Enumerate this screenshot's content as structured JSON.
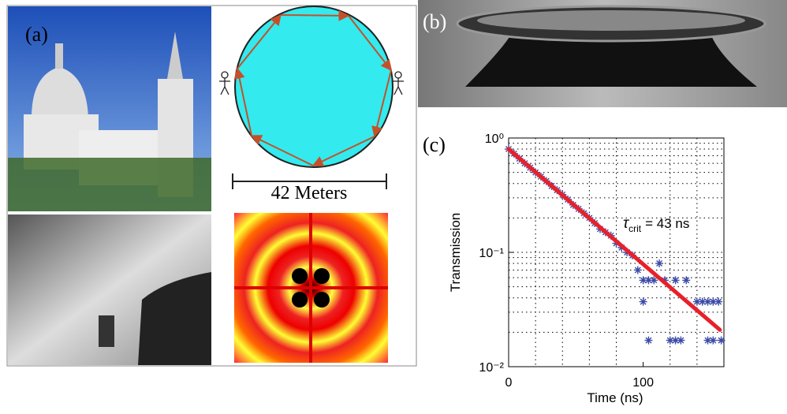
{
  "panels": {
    "a": {
      "label": "(a)",
      "scale_label": "42 Meters"
    },
    "b": {
      "label": "(b)"
    },
    "c": {
      "label": "(c)"
    }
  },
  "chart_data": {
    "type": "scatter",
    "xlabel": "Time (ns)",
    "ylabel": "Transmission",
    "yscale": "log",
    "grid": true,
    "xlim": [
      0,
      160
    ],
    "xticks": [
      0,
      100
    ],
    "xminor": [
      20,
      40,
      60,
      80,
      120,
      140
    ],
    "ylim": [
      0.01,
      1
    ],
    "yticks": [
      {
        "value": 1,
        "label": "10⁰"
      },
      {
        "value": 0.1,
        "label": "10⁻¹"
      },
      {
        "value": 0.01,
        "label": "10⁻²"
      }
    ],
    "yminor": [
      0.02,
      0.03,
      0.04,
      0.05,
      0.06,
      0.07,
      0.08,
      0.09,
      0.2,
      0.3,
      0.4,
      0.5,
      0.6,
      0.7,
      0.8,
      0.9
    ],
    "annotation": {
      "symbol": "τ",
      "subscript": "crit",
      "text": "= 43 ns"
    },
    "points": {
      "color": "#3a4aa6",
      "x": [
        0,
        4,
        8,
        12,
        16,
        20,
        24,
        28,
        32,
        36,
        40,
        44,
        48,
        52,
        56,
        60,
        64,
        68,
        72,
        76,
        80,
        84,
        88,
        92,
        96,
        100,
        104,
        108,
        112,
        116,
        124,
        132,
        100,
        140,
        144,
        148,
        152,
        156,
        104,
        120,
        124,
        128,
        148,
        152,
        158
      ],
      "values": [
        0.8,
        0.73,
        0.66,
        0.6,
        0.55,
        0.5,
        0.46,
        0.42,
        0.38,
        0.35,
        0.32,
        0.29,
        0.26,
        0.24,
        0.22,
        0.2,
        0.18,
        0.16,
        0.15,
        0.14,
        0.12,
        0.11,
        0.1,
        0.094,
        0.07,
        0.057,
        0.057,
        0.057,
        0.08,
        0.057,
        0.057,
        0.057,
        0.037,
        0.037,
        0.037,
        0.037,
        0.037,
        0.037,
        0.017,
        0.017,
        0.017,
        0.017,
        0.017,
        0.017,
        0.017
      ]
    },
    "fit": {
      "color": "#e8202a",
      "x": [
        0,
        157
      ],
      "values": [
        0.8,
        0.021
      ]
    }
  }
}
